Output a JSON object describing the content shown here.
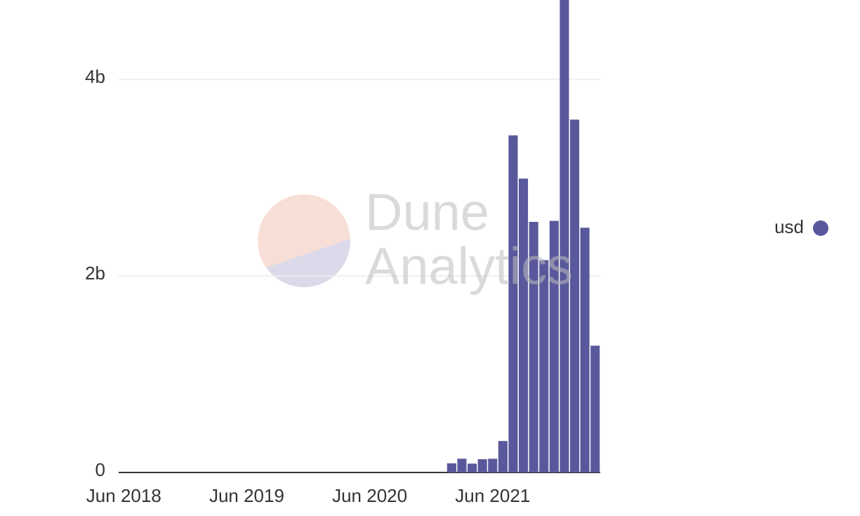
{
  "chart_data": {
    "type": "bar",
    "categories": [
      "Jun 2018",
      null,
      null,
      null,
      null,
      null,
      null,
      null,
      null,
      null,
      null,
      null,
      "Jun 2019",
      null,
      null,
      null,
      null,
      null,
      null,
      null,
      null,
      null,
      null,
      null,
      "Jun 2020",
      null,
      null,
      null,
      null,
      null,
      null,
      null,
      null,
      null,
      null,
      null,
      "Jun 2021",
      null,
      null,
      null,
      null,
      null,
      null,
      null,
      null,
      null,
      null
    ],
    "series": [
      {
        "name": "usd",
        "color": "#5a589c",
        "values": [
          0,
          0,
          0,
          0,
          0,
          0,
          0,
          0,
          0,
          0,
          0,
          0,
          0,
          0,
          0,
          0,
          0,
          0,
          0,
          0,
          0,
          0,
          0,
          0,
          0,
          0,
          0,
          0,
          0,
          0,
          0,
          0,
          93000000,
          140000000,
          90000000,
          135000000,
          140000000,
          320000000,
          3430000000,
          2990000000,
          2550000000,
          2160000000,
          2560000000,
          4900000000,
          3590000000,
          2490000000,
          1290000000
        ]
      }
    ],
    "ylim": [
      0,
      4807000000
    ],
    "yticks": [
      0,
      {
        "value": 2000000000,
        "label": "2b"
      },
      {
        "value": 4000000000,
        "label": "4b"
      }
    ],
    "grid": true,
    "legend": "right",
    "watermark": [
      "Dune",
      "Analytics"
    ]
  }
}
